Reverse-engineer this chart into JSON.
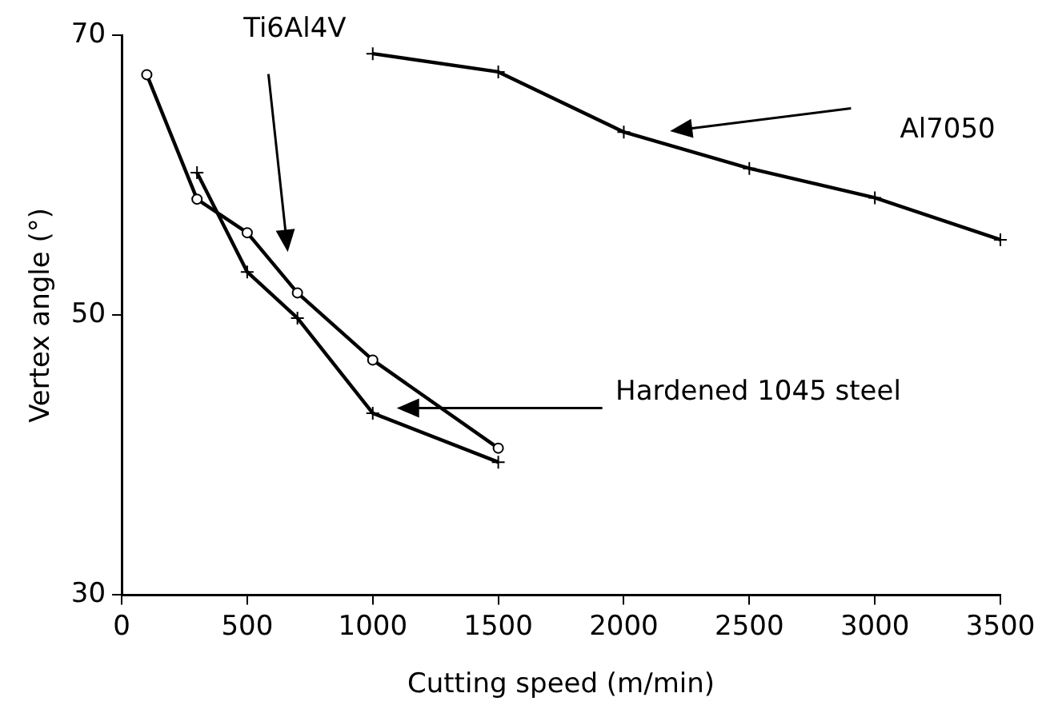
{
  "chart_data": {
    "type": "line",
    "xlabel": "Cutting speed (m/min)",
    "ylabel": "Vertex angle (°)",
    "xlim": [
      0,
      3500
    ],
    "xticks": [
      0,
      500,
      1000,
      1500,
      2000,
      2500,
      3000,
      3500
    ],
    "ylim": [
      30,
      70
    ],
    "yticks": [
      30,
      50,
      70
    ],
    "grid": false,
    "legend": false,
    "line_style": "solid",
    "series": [
      {
        "name": "Ti6Al4V",
        "color": "#000000",
        "marker": "circle",
        "x": [
          100,
          300,
          500,
          700,
          1000,
          1500
        ],
        "values": [
          67.2,
          58.3,
          55.9,
          51.6,
          46.8,
          40.5
        ]
      },
      {
        "name": "Hardened 1045 steel",
        "color": "#000000",
        "marker": "cross",
        "x": [
          300,
          500,
          700,
          1000,
          1500
        ],
        "values": [
          60.2,
          53.1,
          49.8,
          43.0,
          39.5
        ]
      },
      {
        "name": "Al7050",
        "color": "#000000",
        "marker": "cross",
        "x": [
          1000,
          1500,
          2000,
          2500,
          3000,
          3500
        ],
        "values": [
          68.7,
          67.4,
          63.1,
          60.5,
          58.4,
          55.4
        ]
      }
    ]
  }
}
